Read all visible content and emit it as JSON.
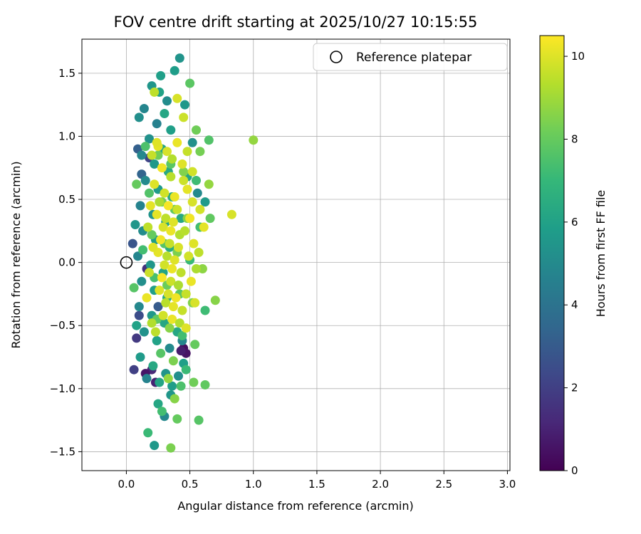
{
  "chart_data": {
    "type": "scatter",
    "title": "FOV centre drift starting at 2025/10/27 10:15:55",
    "xlabel": "Angular distance from reference (arcmin)",
    "ylabel": "Rotation from reference (arcmin)",
    "xlim": [
      -0.35,
      3.02
    ],
    "ylim": [
      -1.65,
      1.77
    ],
    "xticks": [
      0.0,
      0.5,
      1.0,
      1.5,
      2.0,
      2.5,
      3.0
    ],
    "yticks": [
      -1.5,
      -1.0,
      -0.5,
      0.0,
      0.5,
      1.0,
      1.5
    ],
    "grid": true,
    "legend": {
      "label": "Reference platepar",
      "position": "upper right",
      "marker": "open-circle"
    },
    "colorbar": {
      "label": "Hours from first FF file",
      "min": 0,
      "max": 10.5,
      "ticks": [
        0,
        2,
        4,
        6,
        8,
        10
      ],
      "colormap": "viridis"
    },
    "colormap_stops": [
      "#440154",
      "#482878",
      "#3e4989",
      "#31688e",
      "#26828e",
      "#1f9e89",
      "#35b779",
      "#6dcd59",
      "#b4de2c",
      "#fde725"
    ],
    "reference_point": {
      "x": 0.0,
      "y": 0.0
    },
    "points": [
      [
        0.45,
        -0.68,
        0.3
      ],
      [
        0.47,
        -0.72,
        0.5
      ],
      [
        0.43,
        -0.7,
        0.8
      ],
      [
        0.2,
        -0.85,
        1.2
      ],
      [
        0.15,
        -0.88,
        0.6
      ],
      [
        0.1,
        -0.42,
        2.5
      ],
      [
        0.08,
        -0.6,
        1.8
      ],
      [
        0.25,
        -0.35,
        3.0
      ],
      [
        0.18,
        0.83,
        2.2
      ],
      [
        0.12,
        0.7,
        3.4
      ],
      [
        0.05,
        0.15,
        2.8
      ],
      [
        0.16,
        -0.05,
        1.5
      ],
      [
        0.09,
        0.9,
        3.2
      ],
      [
        0.23,
        -0.95,
        1.0
      ],
      [
        0.06,
        -0.85,
        2.0
      ],
      [
        0.1,
        1.15,
        5.2
      ],
      [
        0.14,
        1.22,
        4.8
      ],
      [
        0.2,
        1.4,
        5.5
      ],
      [
        0.26,
        1.35,
        6.0
      ],
      [
        0.32,
        1.28,
        5.1
      ],
      [
        0.38,
        1.52,
        5.8
      ],
      [
        0.42,
        1.62,
        5.4
      ],
      [
        0.3,
        1.18,
        6.2
      ],
      [
        0.24,
        1.1,
        4.6
      ],
      [
        0.35,
        1.05,
        5.9
      ],
      [
        0.18,
        0.98,
        5.3
      ],
      [
        0.28,
        0.9,
        6.1
      ],
      [
        0.12,
        0.85,
        4.9
      ],
      [
        0.22,
        0.78,
        5.6
      ],
      [
        0.33,
        0.72,
        6.3
      ],
      [
        0.15,
        0.65,
        5.0
      ],
      [
        0.25,
        0.58,
        5.7
      ],
      [
        0.36,
        0.52,
        6.4
      ],
      [
        0.11,
        0.45,
        4.7
      ],
      [
        0.21,
        0.38,
        5.4
      ],
      [
        0.31,
        0.32,
        6.0
      ],
      [
        0.13,
        0.25,
        5.1
      ],
      [
        0.23,
        0.18,
        5.8
      ],
      [
        0.34,
        0.12,
        6.5
      ],
      [
        0.09,
        0.05,
        4.8
      ],
      [
        0.19,
        -0.02,
        5.5
      ],
      [
        0.29,
        -0.08,
        6.1
      ],
      [
        0.12,
        -0.15,
        5.2
      ],
      [
        0.22,
        -0.22,
        5.9
      ],
      [
        0.32,
        -0.28,
        6.4
      ],
      [
        0.1,
        -0.35,
        4.9
      ],
      [
        0.2,
        -0.42,
        5.6
      ],
      [
        0.3,
        -0.48,
        6.2
      ],
      [
        0.14,
        -0.55,
        5.3
      ],
      [
        0.24,
        -0.62,
        6.0
      ],
      [
        0.34,
        -0.68,
        5.0
      ],
      [
        0.11,
        -0.75,
        5.7
      ],
      [
        0.21,
        -0.82,
        6.3
      ],
      [
        0.31,
        -0.88,
        5.4
      ],
      [
        0.16,
        -0.92,
        4.7
      ],
      [
        0.26,
        -0.95,
        6.1
      ],
      [
        0.36,
        -0.98,
        5.8
      ],
      [
        0.41,
        -0.9,
        5.2
      ],
      [
        0.45,
        -0.8,
        5.9
      ],
      [
        0.4,
        -0.55,
        6.2
      ],
      [
        0.44,
        -0.62,
        4.8
      ],
      [
        0.07,
        0.3,
        5.5
      ],
      [
        0.08,
        -0.5,
        6.0
      ],
      [
        0.46,
        1.25,
        5.6
      ],
      [
        0.52,
        0.95,
        5.3
      ],
      [
        0.48,
        0.68,
        6.1
      ],
      [
        0.56,
        0.55,
        5.0
      ],
      [
        0.62,
        0.48,
        5.7
      ],
      [
        0.27,
        1.48,
        5.9
      ],
      [
        0.35,
        -1.05,
        5.5
      ],
      [
        0.25,
        -1.12,
        6.2
      ],
      [
        0.3,
        -1.22,
        4.9
      ],
      [
        0.22,
        -1.45,
        5.6
      ],
      [
        0.43,
        0.35,
        6.3
      ],
      [
        0.15,
        0.92,
        7.5
      ],
      [
        0.25,
        0.85,
        8.2
      ],
      [
        0.35,
        0.78,
        7.8
      ],
      [
        0.45,
        0.72,
        8.5
      ],
      [
        0.55,
        0.65,
        7.2
      ],
      [
        0.65,
        0.62,
        8.8
      ],
      [
        0.18,
        0.55,
        7.6
      ],
      [
        0.28,
        0.48,
        8.3
      ],
      [
        0.38,
        0.42,
        7.9
      ],
      [
        0.48,
        0.35,
        8.6
      ],
      [
        0.58,
        0.28,
        7.3
      ],
      [
        0.2,
        0.22,
        8.0
      ],
      [
        0.3,
        0.15,
        7.7
      ],
      [
        0.4,
        0.08,
        8.4
      ],
      [
        0.5,
        0.02,
        7.1
      ],
      [
        0.6,
        -0.05,
        8.7
      ],
      [
        0.22,
        -0.12,
        7.4
      ],
      [
        0.32,
        -0.18,
        8.1
      ],
      [
        0.42,
        -0.25,
        7.8
      ],
      [
        0.52,
        -0.32,
        8.5
      ],
      [
        0.62,
        -0.38,
        7.2
      ],
      [
        0.24,
        -0.45,
        7.9
      ],
      [
        0.34,
        -0.52,
        8.6
      ],
      [
        0.44,
        -0.58,
        7.3
      ],
      [
        0.54,
        -0.65,
        8.0
      ],
      [
        0.27,
        -0.72,
        7.7
      ],
      [
        0.37,
        -0.78,
        8.4
      ],
      [
        0.47,
        -0.85,
        7.1
      ],
      [
        0.33,
        -0.92,
        8.8
      ],
      [
        0.43,
        -0.98,
        7.5
      ],
      [
        0.53,
        -0.95,
        8.2
      ],
      [
        0.62,
        -0.97,
        7.9
      ],
      [
        0.38,
        -1.08,
        8.6
      ],
      [
        0.28,
        -1.18,
        7.3
      ],
      [
        0.4,
        -1.24,
        8.0
      ],
      [
        0.57,
        -1.25,
        7.7
      ],
      [
        0.35,
        -1.47,
        8.4
      ],
      [
        0.17,
        -1.35,
        7.1
      ],
      [
        1.0,
        0.97,
        8.8
      ],
      [
        0.65,
        0.97,
        7.6
      ],
      [
        0.58,
        0.88,
        8.3
      ],
      [
        0.66,
        0.35,
        7.9
      ],
      [
        0.7,
        -0.3,
        8.6
      ],
      [
        0.13,
        0.1,
        7.3
      ],
      [
        0.08,
        0.62,
        8.0
      ],
      [
        0.06,
        -0.2,
        7.7
      ],
      [
        0.55,
        1.05,
        8.2
      ],
      [
        0.5,
        1.42,
        7.8
      ],
      [
        0.2,
        0.85,
        9.6
      ],
      [
        0.25,
        0.92,
        10.1
      ],
      [
        0.32,
        0.88,
        9.9
      ],
      [
        0.28,
        0.75,
        10.3
      ],
      [
        0.35,
        0.68,
        9.4
      ],
      [
        0.22,
        0.62,
        10.0
      ],
      [
        0.3,
        0.55,
        9.8
      ],
      [
        0.38,
        0.52,
        10.2
      ],
      [
        0.26,
        0.48,
        9.2
      ],
      [
        0.33,
        0.45,
        10.4
      ],
      [
        0.4,
        0.42,
        9.7
      ],
      [
        0.24,
        0.38,
        10.1
      ],
      [
        0.31,
        0.35,
        9.5
      ],
      [
        0.37,
        0.32,
        10.0
      ],
      [
        0.29,
        0.28,
        9.9
      ],
      [
        0.35,
        0.25,
        10.2
      ],
      [
        0.42,
        0.22,
        9.3
      ],
      [
        0.27,
        0.18,
        10.3
      ],
      [
        0.34,
        0.15,
        9.6
      ],
      [
        0.41,
        0.12,
        9.9
      ],
      [
        0.25,
        0.08,
        10.1
      ],
      [
        0.32,
        0.05,
        9.4
      ],
      [
        0.38,
        0.02,
        10.0
      ],
      [
        0.3,
        -0.02,
        9.8
      ],
      [
        0.36,
        -0.05,
        10.2
      ],
      [
        0.43,
        -0.08,
        9.5
      ],
      [
        0.28,
        -0.12,
        10.4
      ],
      [
        0.35,
        -0.15,
        9.7
      ],
      [
        0.41,
        -0.18,
        9.2
      ],
      [
        0.26,
        -0.22,
        10.0
      ],
      [
        0.33,
        -0.25,
        9.9
      ],
      [
        0.39,
        -0.28,
        10.3
      ],
      [
        0.31,
        -0.32,
        9.4
      ],
      [
        0.37,
        -0.35,
        10.1
      ],
      [
        0.44,
        -0.38,
        9.6
      ],
      [
        0.29,
        -0.42,
        9.8
      ],
      [
        0.36,
        -0.45,
        10.2
      ],
      [
        0.42,
        -0.48,
        9.3
      ],
      [
        0.47,
        -0.52,
        10.0
      ],
      [
        0.23,
        -0.55,
        9.5
      ],
      [
        0.48,
        0.58,
        10.1
      ],
      [
        0.45,
        0.65,
        9.7
      ],
      [
        0.52,
        0.48,
        9.9
      ],
      [
        0.5,
        0.35,
        10.3
      ],
      [
        0.46,
        0.25,
        9.4
      ],
      [
        0.53,
        0.15,
        10.0
      ],
      [
        0.49,
        0.05,
        9.8
      ],
      [
        0.55,
        -0.05,
        9.2
      ],
      [
        0.51,
        -0.15,
        10.2
      ],
      [
        0.47,
        -0.25,
        9.6
      ],
      [
        0.54,
        -0.32,
        9.9
      ],
      [
        0.19,
        0.45,
        10.1
      ],
      [
        0.17,
        0.28,
        9.5
      ],
      [
        0.21,
        0.12,
        10.0
      ],
      [
        0.18,
        -0.08,
        9.7
      ],
      [
        0.16,
        -0.28,
        10.2
      ],
      [
        0.2,
        -0.48,
        9.3
      ],
      [
        0.58,
        0.42,
        9.8
      ],
      [
        0.61,
        0.28,
        10.1
      ],
      [
        0.57,
        0.08,
        9.5
      ],
      [
        0.83,
        0.38,
        9.9
      ],
      [
        0.44,
        0.78,
        10.0
      ],
      [
        0.48,
        0.88,
        9.6
      ],
      [
        0.4,
        0.95,
        10.2
      ],
      [
        0.36,
        0.82,
        9.3
      ],
      [
        0.52,
        0.72,
        9.8
      ],
      [
        0.24,
        0.95,
        10.0
      ],
      [
        0.45,
        1.15,
        9.7
      ],
      [
        0.4,
        1.3,
        9.9
      ],
      [
        0.22,
        1.35,
        9.5
      ]
    ]
  }
}
